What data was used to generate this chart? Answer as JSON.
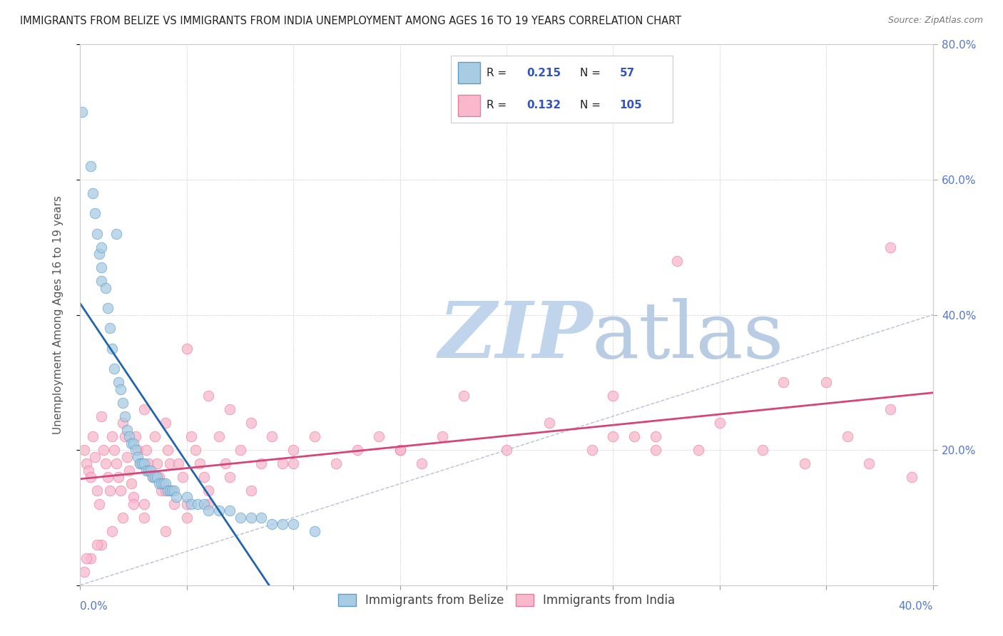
{
  "title": "IMMIGRANTS FROM BELIZE VS IMMIGRANTS FROM INDIA UNEMPLOYMENT AMONG AGES 16 TO 19 YEARS CORRELATION CHART",
  "source": "Source: ZipAtlas.com",
  "ylabel": "Unemployment Among Ages 16 to 19 years",
  "xlim": [
    0.0,
    0.4
  ],
  "ylim": [
    0.0,
    0.8
  ],
  "yticks": [
    0.0,
    0.2,
    0.4,
    0.6,
    0.8
  ],
  "ytick_labels_right": [
    "",
    "20.0%",
    "40.0%",
    "60.0%",
    "80.0%"
  ],
  "belize_R": 0.215,
  "belize_N": 57,
  "india_R": 0.132,
  "india_N": 105,
  "belize_color": "#a8cce4",
  "india_color": "#f9b8cb",
  "belize_edge": "#5b9dc9",
  "india_edge": "#e87ba0",
  "trend_belize_color": "#2166ac",
  "trend_india_color": "#d6457a",
  "diagonal_color": "#b0b8d0",
  "watermark_zip_color": "#c8d8ee",
  "watermark_atlas_color": "#b8cce0",
  "legend_label_belize": "Immigrants from Belize",
  "legend_label_india": "Immigrants from India",
  "background_color": "#ffffff",
  "belize_x": [
    0.001,
    0.005,
    0.006,
    0.007,
    0.008,
    0.009,
    0.01,
    0.01,
    0.01,
    0.012,
    0.013,
    0.014,
    0.015,
    0.016,
    0.017,
    0.018,
    0.019,
    0.02,
    0.021,
    0.022,
    0.023,
    0.024,
    0.025,
    0.026,
    0.027,
    0.028,
    0.029,
    0.03,
    0.031,
    0.032,
    0.033,
    0.034,
    0.035,
    0.036,
    0.037,
    0.038,
    0.039,
    0.04,
    0.041,
    0.042,
    0.043,
    0.044,
    0.045,
    0.05,
    0.052,
    0.055,
    0.058,
    0.06,
    0.065,
    0.07,
    0.075,
    0.08,
    0.085,
    0.09,
    0.095,
    0.1,
    0.11
  ],
  "belize_y": [
    0.7,
    0.62,
    0.58,
    0.55,
    0.52,
    0.49,
    0.47,
    0.45,
    0.5,
    0.44,
    0.41,
    0.38,
    0.35,
    0.32,
    0.52,
    0.3,
    0.29,
    0.27,
    0.25,
    0.23,
    0.22,
    0.21,
    0.21,
    0.2,
    0.19,
    0.18,
    0.18,
    0.18,
    0.17,
    0.17,
    0.17,
    0.16,
    0.16,
    0.16,
    0.15,
    0.15,
    0.15,
    0.15,
    0.14,
    0.14,
    0.14,
    0.14,
    0.13,
    0.13,
    0.12,
    0.12,
    0.12,
    0.11,
    0.11,
    0.11,
    0.1,
    0.1,
    0.1,
    0.09,
    0.09,
    0.09,
    0.08
  ],
  "india_x": [
    0.002,
    0.003,
    0.004,
    0.005,
    0.006,
    0.007,
    0.008,
    0.009,
    0.01,
    0.011,
    0.012,
    0.013,
    0.014,
    0.015,
    0.016,
    0.017,
    0.018,
    0.019,
    0.02,
    0.021,
    0.022,
    0.023,
    0.024,
    0.025,
    0.026,
    0.027,
    0.028,
    0.03,
    0.031,
    0.032,
    0.034,
    0.035,
    0.036,
    0.037,
    0.038,
    0.04,
    0.041,
    0.042,
    0.043,
    0.044,
    0.046,
    0.048,
    0.05,
    0.052,
    0.054,
    0.056,
    0.058,
    0.06,
    0.065,
    0.068,
    0.07,
    0.075,
    0.08,
    0.085,
    0.09,
    0.095,
    0.1,
    0.11,
    0.12,
    0.13,
    0.14,
    0.15,
    0.16,
    0.17,
    0.18,
    0.2,
    0.22,
    0.24,
    0.25,
    0.26,
    0.27,
    0.28,
    0.29,
    0.3,
    0.32,
    0.34,
    0.35,
    0.36,
    0.37,
    0.38,
    0.39,
    0.38,
    0.27,
    0.33,
    0.25,
    0.15,
    0.1,
    0.08,
    0.06,
    0.05,
    0.04,
    0.03,
    0.03,
    0.025,
    0.02,
    0.015,
    0.01,
    0.008,
    0.005,
    0.003,
    0.002,
    0.04,
    0.05,
    0.06,
    0.07
  ],
  "india_y": [
    0.2,
    0.18,
    0.17,
    0.16,
    0.22,
    0.19,
    0.14,
    0.12,
    0.25,
    0.2,
    0.18,
    0.16,
    0.14,
    0.22,
    0.2,
    0.18,
    0.16,
    0.14,
    0.24,
    0.22,
    0.19,
    0.17,
    0.15,
    0.13,
    0.22,
    0.2,
    0.18,
    0.26,
    0.2,
    0.18,
    0.16,
    0.22,
    0.18,
    0.16,
    0.14,
    0.24,
    0.2,
    0.18,
    0.14,
    0.12,
    0.18,
    0.16,
    0.35,
    0.22,
    0.2,
    0.18,
    0.16,
    0.28,
    0.22,
    0.18,
    0.26,
    0.2,
    0.24,
    0.18,
    0.22,
    0.18,
    0.2,
    0.22,
    0.18,
    0.2,
    0.22,
    0.2,
    0.18,
    0.22,
    0.28,
    0.2,
    0.24,
    0.2,
    0.28,
    0.22,
    0.2,
    0.48,
    0.2,
    0.24,
    0.2,
    0.18,
    0.3,
    0.22,
    0.18,
    0.5,
    0.16,
    0.26,
    0.22,
    0.3,
    0.22,
    0.2,
    0.18,
    0.14,
    0.12,
    0.1,
    0.08,
    0.1,
    0.12,
    0.12,
    0.1,
    0.08,
    0.06,
    0.06,
    0.04,
    0.04,
    0.02,
    0.14,
    0.12,
    0.14,
    0.16
  ]
}
